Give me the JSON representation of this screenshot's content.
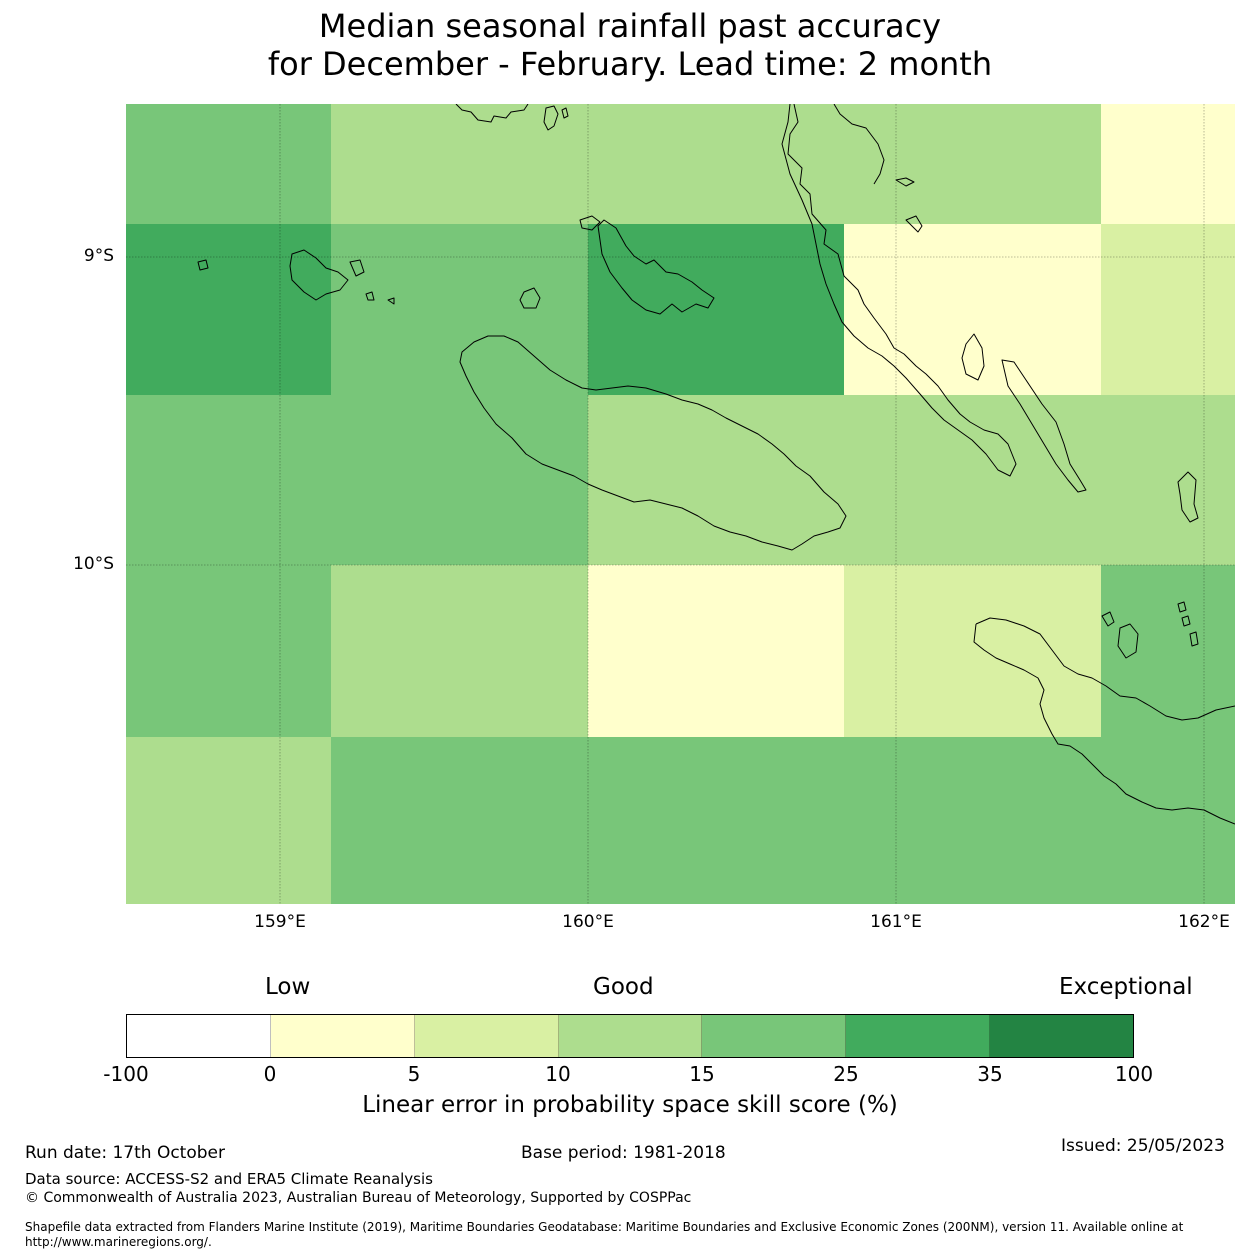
{
  "title": {
    "line1": "Median seasonal rainfall past accuracy",
    "line2": "for December - February. Lead time: 2 month"
  },
  "map": {
    "lat_labels": [
      "9°S",
      "10°S"
    ],
    "lon_labels": [
      "159°E",
      "160°E",
      "161°E",
      "162°E"
    ],
    "grid_cells": [
      {
        "row": 0,
        "col": 0,
        "skill_class": "15-25"
      },
      {
        "row": 0,
        "col": 1,
        "skill_class": "10-15"
      },
      {
        "row": 0,
        "col": 2,
        "skill_class": "10-15"
      },
      {
        "row": 0,
        "col": 3,
        "skill_class": "10-15"
      },
      {
        "row": 0,
        "col": 4,
        "skill_class": "0-5"
      },
      {
        "row": 1,
        "col": 0,
        "skill_class": "25-35"
      },
      {
        "row": 1,
        "col": 1,
        "skill_class": "15-25"
      },
      {
        "row": 1,
        "col": 2,
        "skill_class": "25-35"
      },
      {
        "row": 1,
        "col": 3,
        "skill_class": "0-5"
      },
      {
        "row": 1,
        "col": 4,
        "skill_class": "5-10"
      },
      {
        "row": 2,
        "col": 0,
        "skill_class": "15-25"
      },
      {
        "row": 2,
        "col": 1,
        "skill_class": "15-25"
      },
      {
        "row": 2,
        "col": 2,
        "skill_class": "10-15"
      },
      {
        "row": 2,
        "col": 3,
        "skill_class": "10-15"
      },
      {
        "row": 2,
        "col": 4,
        "skill_class": "10-15"
      },
      {
        "row": 3,
        "col": 0,
        "skill_class": "15-25"
      },
      {
        "row": 3,
        "col": 1,
        "skill_class": "10-15"
      },
      {
        "row": 3,
        "col": 2,
        "skill_class": "0-5"
      },
      {
        "row": 3,
        "col": 3,
        "skill_class": "5-10"
      },
      {
        "row": 3,
        "col": 4,
        "skill_class": "15-25"
      },
      {
        "row": 4,
        "col": 0,
        "skill_class": "10-15"
      },
      {
        "row": 4,
        "col": 1,
        "skill_class": "15-25"
      },
      {
        "row": 4,
        "col": 2,
        "skill_class": "15-25"
      },
      {
        "row": 4,
        "col": 3,
        "skill_class": "15-25"
      },
      {
        "row": 4,
        "col": 4,
        "skill_class": "15-25"
      }
    ]
  },
  "colorbar": {
    "headings": {
      "low": "Low",
      "good": "Good",
      "exceptional": "Exceptional"
    },
    "ticks": [
      "-100",
      "0",
      "5",
      "10",
      "15",
      "25",
      "35",
      "100"
    ],
    "colors": [
      "#ffffff",
      "#ffffcc",
      "#d9f0a3",
      "#addd8e",
      "#78c679",
      "#41ab5d",
      "#238443"
    ],
    "label": "Linear error in probability space skill score (%)"
  },
  "footer": {
    "run_date": "Run date: 17th October",
    "base_period": "Base period: 1981-2018",
    "issued": "Issued: 25/05/2023",
    "data_source": "Data source: ACCESS-S2 and ERA5 Climate Reanalysis",
    "copyright": "© Commonwealth of Australia 2023, Australian Bureau of Meteorology, Supported by COSPPac",
    "shapefile": "Shapefile data extracted from Flanders Marine Institute (2019), Maritime Boundaries Geodatabase: Maritime Boundaries and Exclusive Economic Zones (200NM), version 11. Available online at http://www.marineregions.org/."
  }
}
